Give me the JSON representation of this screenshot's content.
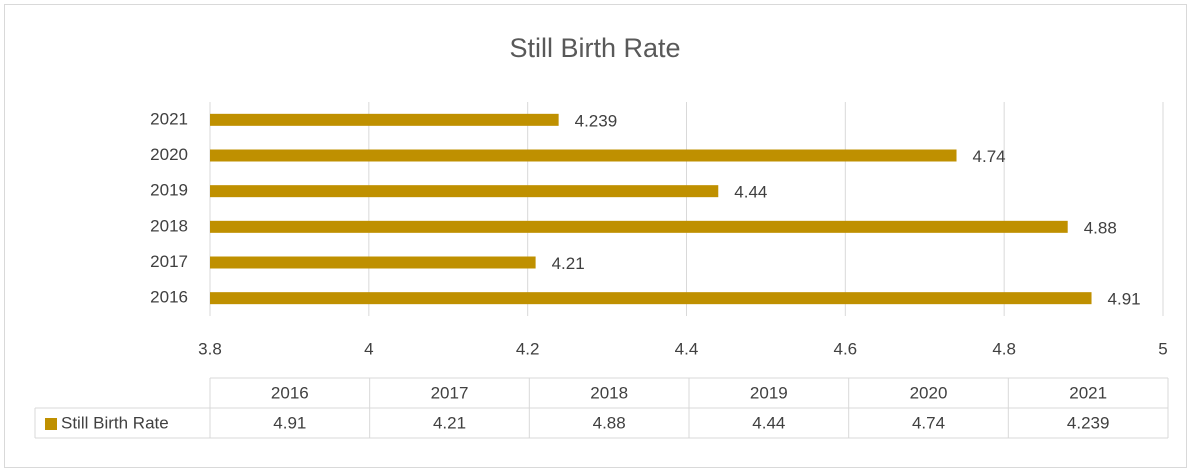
{
  "chart_data": {
    "type": "bar",
    "orientation": "horizontal",
    "title": "Still Birth Rate",
    "categories": [
      "2016",
      "2017",
      "2018",
      "2019",
      "2020",
      "2021"
    ],
    "series": [
      {
        "name": "Still Birth Rate",
        "color": "#bf9000",
        "values": [
          4.91,
          4.21,
          4.88,
          4.44,
          4.74,
          4.239
        ]
      }
    ],
    "xlim": [
      3.8,
      5
    ],
    "xticks": [
      3.8,
      4,
      4.2,
      4.4,
      4.6,
      4.8,
      5
    ],
    "grid": true,
    "data_labels": true,
    "data_table": true
  }
}
